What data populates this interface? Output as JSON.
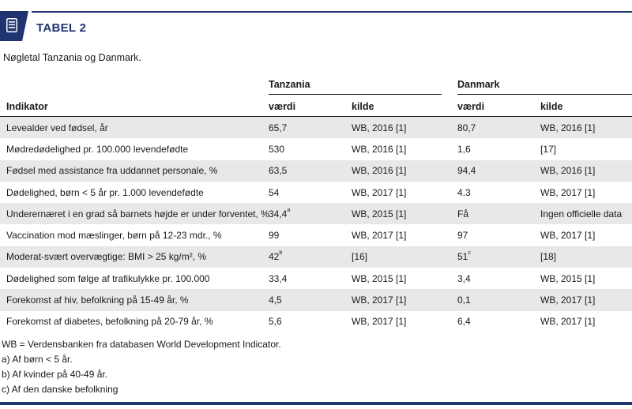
{
  "header": {
    "label": "TABEL 2",
    "icon": "list-icon",
    "accent_color": "#1f3470"
  },
  "subtitle": "Nøgletal Tanzania og Danmark.",
  "columns": {
    "tanzania": "Tanzania",
    "danmark": "Danmark",
    "indikator": "Indikator",
    "vaerdi": "værdi",
    "kilde": "kilde"
  },
  "rows": [
    {
      "ind": "Levealder ved fødsel, år",
      "tz_v": "65,7",
      "tz_sup": "",
      "tz_k": "WB, 2016 [1]",
      "dk_v": "80,7",
      "dk_sup": "",
      "dk_k": "WB, 2016 [1]"
    },
    {
      "ind": "Mødredødelighed pr. 100.000 levendefødte",
      "tz_v": "530",
      "tz_sup": "",
      "tz_k": "WB, 2016 [1]",
      "dk_v": "1,6",
      "dk_sup": "",
      "dk_k": "[17]"
    },
    {
      "ind": "Fødsel med assistance fra uddannet personale, %",
      "tz_v": "63,5",
      "tz_sup": "",
      "tz_k": "WB, 2016 [1]",
      "dk_v": "94,4",
      "dk_sup": "",
      "dk_k": "WB, 2016 [1]"
    },
    {
      "ind": "Dødelighed, børn < 5 år pr. 1.000 levendefødte",
      "tz_v": "54",
      "tz_sup": "",
      "tz_k": "WB, 2017 [1]",
      "dk_v": "4.3",
      "dk_sup": "",
      "dk_k": "WB, 2017 [1]"
    },
    {
      "ind": "Underernæret i en grad så barnets højde er under forventet, %",
      "tz_v": "34,4",
      "tz_sup": "a",
      "tz_k": "WB, 2015 [1]",
      "dk_v": "Få",
      "dk_sup": "",
      "dk_k": "Ingen officielle data"
    },
    {
      "ind": "Vaccination mod mæslinger, børn på 12-23 mdr., %",
      "tz_v": "99",
      "tz_sup": "",
      "tz_k": "WB, 2017 [1]",
      "dk_v": "97",
      "dk_sup": "",
      "dk_k": "WB, 2017 [1]"
    },
    {
      "ind": "Moderat-svært overvægtige: BMI > 25 kg/m², %",
      "tz_v": "42",
      "tz_sup": "b",
      "tz_k": "[16]",
      "dk_v": "51",
      "dk_sup": "c",
      "dk_k": "[18]"
    },
    {
      "ind": "Dødelighed som følge af trafikulykke pr. 100.000",
      "tz_v": "33,4",
      "tz_sup": "",
      "tz_k": "WB, 2015 [1]",
      "dk_v": "3,4",
      "dk_sup": "",
      "dk_k": "WB, 2015 [1]"
    },
    {
      "ind": "Forekomst af hiv, befolkning på 15-49 år, %",
      "tz_v": "4,5",
      "tz_sup": "",
      "tz_k": "WB, 2017 [1]",
      "dk_v": "0,1",
      "dk_sup": "",
      "dk_k": "WB, 2017 [1]"
    },
    {
      "ind": "Forekomst af diabetes, befolkning på 20-79 år, %",
      "tz_v": "5,6",
      "tz_sup": "",
      "tz_k": "WB, 2017 [1]",
      "dk_v": "6,4",
      "dk_sup": "",
      "dk_k": "WB, 2017 [1]"
    }
  ],
  "notes": [
    "WB = Verdensbanken fra databasen World Development Indicator.",
    "a) Af børn < 5 år.",
    "b) Af kvinder på 40-49 år.",
    "c) Af den danske befolkning"
  ]
}
